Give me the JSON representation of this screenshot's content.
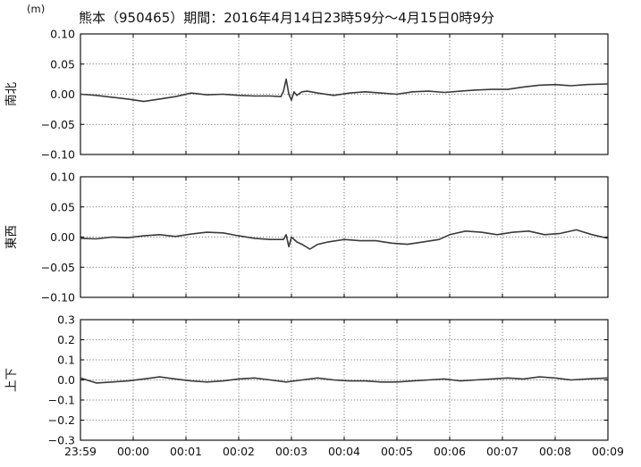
{
  "chart_data": {
    "type": "line",
    "title": "熊本（950465）期間：2016年4月14日23時59分～4月15日0時9分",
    "unit": "(m)",
    "line_color": "#3a3a3a",
    "grid": true,
    "grid_style": "dotted",
    "x_tick_labels": [
      "23:59",
      "00:00",
      "00:01",
      "00:02",
      "00:03",
      "00:04",
      "00:05",
      "00:06",
      "00:07",
      "00:08",
      "00:09"
    ],
    "xlim_minutes": [
      0,
      10
    ],
    "panels": [
      {
        "ylabel": "南北",
        "ylim": [
          -0.1,
          0.1
        ],
        "y_tick_labels": [
          "0.10",
          "0.05",
          "0.00",
          "−0.05",
          "−0.10"
        ],
        "y_ticks": [
          0.1,
          0.05,
          0.0,
          -0.05,
          -0.1
        ],
        "series": [
          {
            "x": [
              0,
              0.3,
              0.6,
              0.9,
              1.2,
              1.5,
              1.8,
              2.1,
              2.4,
              2.7,
              3.0,
              3.3,
              3.6,
              3.8,
              3.85,
              3.9,
              3.95,
              4.0,
              4.05,
              4.1,
              4.2,
              4.3,
              4.5,
              4.8,
              5.1,
              5.4,
              5.7,
              6.0,
              6.3,
              6.6,
              6.9,
              7.2,
              7.5,
              7.8,
              8.1,
              8.4,
              8.7,
              9.0,
              9.3,
              9.6,
              10.0
            ],
            "y": [
              0.0,
              -0.002,
              -0.005,
              -0.008,
              -0.012,
              -0.008,
              -0.004,
              0.002,
              -0.001,
              0.0,
              -0.002,
              -0.003,
              -0.003,
              -0.004,
              0.005,
              0.025,
              0.0,
              -0.01,
              0.004,
              -0.002,
              0.004,
              0.005,
              0.002,
              -0.002,
              0.002,
              0.004,
              0.002,
              0.0,
              0.004,
              0.005,
              0.003,
              0.005,
              0.007,
              0.008,
              0.008,
              0.012,
              0.015,
              0.016,
              0.014,
              0.016,
              0.017
            ]
          }
        ]
      },
      {
        "ylabel": "東西",
        "ylim": [
          -0.1,
          0.1
        ],
        "y_tick_labels": [
          "0.10",
          "0.05",
          "0.00",
          "−0.05",
          "−0.10"
        ],
        "y_ticks": [
          0.1,
          0.05,
          0.0,
          -0.05,
          -0.1
        ],
        "series": [
          {
            "x": [
              0,
              0.3,
              0.6,
              0.9,
              1.2,
              1.5,
              1.8,
              2.1,
              2.4,
              2.7,
              3.0,
              3.3,
              3.6,
              3.85,
              3.9,
              3.95,
              4.0,
              4.1,
              4.2,
              4.35,
              4.5,
              4.7,
              5.0,
              5.3,
              5.6,
              5.9,
              6.2,
              6.5,
              6.8,
              7.0,
              7.3,
              7.6,
              7.9,
              8.2,
              8.5,
              8.8,
              9.1,
              9.4,
              9.7,
              10.0
            ],
            "y": [
              -0.002,
              -0.003,
              0.0,
              -0.001,
              0.002,
              0.004,
              0.001,
              0.005,
              0.008,
              0.007,
              0.002,
              -0.002,
              -0.004,
              -0.004,
              0.004,
              -0.016,
              0.0,
              -0.008,
              -0.012,
              -0.02,
              -0.012,
              -0.008,
              -0.004,
              -0.006,
              -0.006,
              -0.01,
              -0.012,
              -0.008,
              -0.004,
              0.004,
              0.01,
              0.008,
              0.004,
              0.008,
              0.01,
              0.004,
              0.006,
              0.012,
              0.004,
              -0.002
            ]
          }
        ]
      },
      {
        "ylabel": "上下",
        "ylim": [
          -0.3,
          0.3
        ],
        "y_tick_labels": [
          "0.3",
          "0.2",
          "0.1",
          "0.0",
          "−0.1",
          "−0.2",
          "−0.3"
        ],
        "y_ticks": [
          0.3,
          0.2,
          0.1,
          0.0,
          -0.1,
          -0.2,
          -0.3
        ],
        "series": [
          {
            "x": [
              0,
              0.3,
              0.6,
              0.9,
              1.2,
              1.5,
              1.8,
              2.1,
              2.4,
              2.7,
              3.0,
              3.3,
              3.6,
              3.9,
              4.2,
              4.5,
              4.8,
              5.1,
              5.4,
              5.7,
              6.0,
              6.3,
              6.6,
              6.9,
              7.2,
              7.5,
              7.8,
              8.1,
              8.4,
              8.7,
              9.0,
              9.3,
              9.6,
              10.0
            ],
            "y": [
              0.01,
              -0.015,
              -0.01,
              -0.005,
              0.005,
              0.015,
              0.005,
              -0.005,
              -0.01,
              -0.005,
              0.005,
              0.01,
              0.0,
              -0.01,
              0.0,
              0.01,
              0.0,
              -0.005,
              -0.005,
              -0.01,
              -0.01,
              -0.005,
              0.0,
              0.005,
              -0.005,
              0.0,
              0.005,
              0.01,
              0.005,
              0.015,
              0.01,
              0.0,
              0.005,
              0.01
            ]
          }
        ]
      }
    ]
  }
}
